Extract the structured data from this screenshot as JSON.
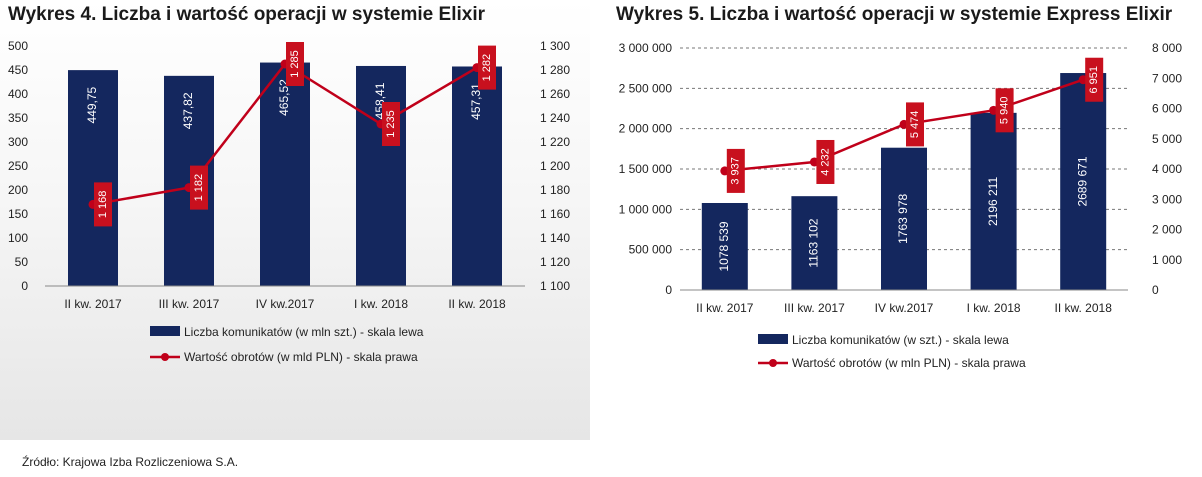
{
  "source": "Źródło: Krajowa Izba Rozliczeniowa S.A.",
  "colors": {
    "bar": "#14275e",
    "line": "#c0001a",
    "label_box": "#c8101e"
  },
  "chart_data": [
    {
      "type": "bar",
      "title": "Wykres 4. Liczba i wartość operacji w systemie Elixir",
      "categories": [
        "II kw. 2017",
        "III kw. 2017",
        "IV kw.2017",
        "I kw. 2018",
        "II kw. 2018"
      ],
      "series": [
        {
          "name": "Liczba komunikatów (w mln szt.) - skala lewa",
          "type": "bar",
          "axis": "left",
          "values": [
            449.75,
            437.82,
            465.52,
            458.41,
            457.31
          ],
          "labels": [
            "449,75",
            "437,82",
            "465,52",
            "458,41",
            "457,31"
          ]
        },
        {
          "name": "Wartość obrotów (w mld PLN) - skala prawa",
          "type": "line",
          "axis": "right",
          "values": [
            1168,
            1182,
            1285,
            1235,
            1282
          ],
          "labels": [
            "1 168",
            "1 182",
            "1 285",
            "1 235",
            "1 282"
          ]
        }
      ],
      "yleft": {
        "min": 0,
        "max": 500,
        "ticks": [
          "500",
          "450",
          "400",
          "350",
          "300",
          "250",
          "200",
          "150",
          "100",
          "50",
          "0"
        ]
      },
      "yright": {
        "min": 1100,
        "max": 1300,
        "ticks": [
          "1 300",
          "1 280",
          "1 260",
          "1 240",
          "1 220",
          "1 200",
          "1 180",
          "1 160",
          "1 140",
          "1 120",
          "1 100"
        ]
      },
      "grid": false,
      "legend": "bottom"
    },
    {
      "type": "bar",
      "title": "Wykres 5. Liczba i wartość operacji w systemie Express Elixir",
      "categories": [
        "II kw. 2017",
        "III kw. 2017",
        "IV kw.2017",
        "I kw. 2018",
        "II kw. 2018"
      ],
      "series": [
        {
          "name": "Liczba komunikatów (w szt.) - skala lewa",
          "type": "bar",
          "axis": "left",
          "values": [
            1078539,
            1163102,
            1763978,
            2196211,
            2689671
          ],
          "labels": [
            "1078 539",
            "1163 102",
            "1763 978",
            "2196 211",
            "2689 671"
          ]
        },
        {
          "name": "Wartość obrotów (w mln PLN) - skala prawa",
          "type": "line",
          "axis": "right",
          "values": [
            3937,
            4232,
            5474,
            5940,
            6951
          ],
          "labels": [
            "3 937",
            "4 232",
            "5 474",
            "5 940",
            "6 951"
          ]
        }
      ],
      "yleft": {
        "min": 0,
        "max": 3000000,
        "ticks": [
          "3 000 000",
          "2 500 000",
          "2 000 000",
          "1 500 000",
          "1 000 000",
          "500 000",
          "0"
        ]
      },
      "yright": {
        "min": 0,
        "max": 8000,
        "ticks": [
          "8 000",
          "7 000",
          "6 000",
          "5 000",
          "4 000",
          "3 000",
          "2 000",
          "1 000",
          "0"
        ]
      },
      "grid": "dashed",
      "legend": "bottom"
    }
  ]
}
